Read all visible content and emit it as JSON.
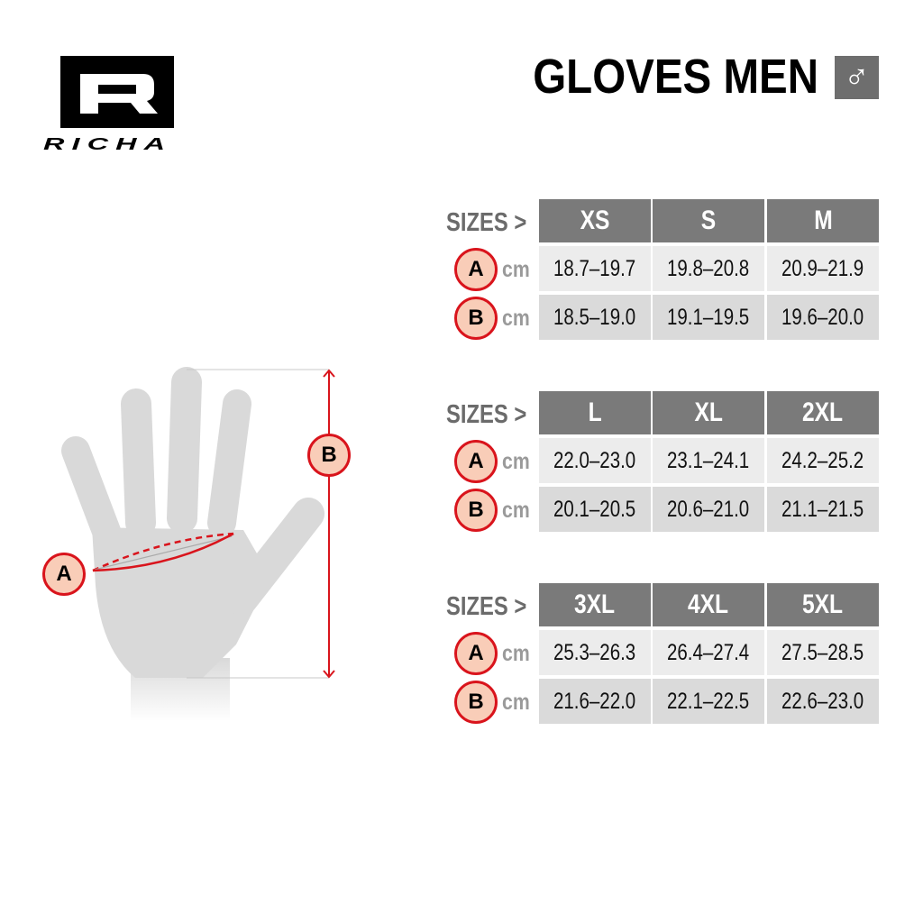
{
  "brand": {
    "logo_letter": "R",
    "logo_word": "RICHA"
  },
  "header": {
    "title": "GLOVES MEN",
    "gender_icon": "male-symbol-icon",
    "gender_symbol": "♂"
  },
  "colors": {
    "header_bg": "#7a7a7a",
    "row_a_bg": "#ececec",
    "row_b_bg": "#dadada",
    "accent_red": "#d9141c",
    "circle_fill": "#f9cdb8"
  },
  "diagram": {
    "label_a": "A",
    "label_b": "B"
  },
  "tables": [
    {
      "sizes_label": "SIZES >",
      "sizes": [
        "XS",
        "S",
        "M"
      ],
      "rows": [
        {
          "key": "A",
          "unit": "cm",
          "values": [
            "18.7–19.7",
            "19.8–20.8",
            "20.9–21.9"
          ]
        },
        {
          "key": "B",
          "unit": "cm",
          "values": [
            "18.5–19.0",
            "19.1–19.5",
            "19.6–20.0"
          ]
        }
      ]
    },
    {
      "sizes_label": "SIZES >",
      "sizes": [
        "L",
        "XL",
        "2XL"
      ],
      "rows": [
        {
          "key": "A",
          "unit": "cm",
          "values": [
            "22.0–23.0",
            "23.1–24.1",
            "24.2–25.2"
          ]
        },
        {
          "key": "B",
          "unit": "cm",
          "values": [
            "20.1–20.5",
            "20.6–21.0",
            "21.1–21.5"
          ]
        }
      ]
    },
    {
      "sizes_label": "SIZES >",
      "sizes": [
        "3XL",
        "4XL",
        "5XL"
      ],
      "rows": [
        {
          "key": "A",
          "unit": "cm",
          "values": [
            "25.3–26.3",
            "26.4–27.4",
            "27.5–28.5"
          ]
        },
        {
          "key": "B",
          "unit": "cm",
          "values": [
            "21.6–22.0",
            "22.1–22.5",
            "22.6–23.0"
          ]
        }
      ]
    }
  ]
}
